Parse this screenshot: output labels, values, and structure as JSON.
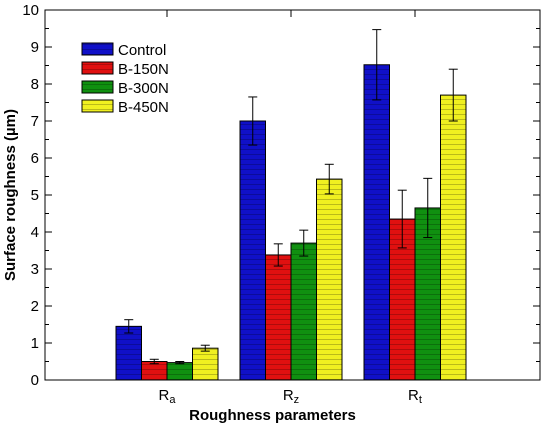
{
  "chart_data": {
    "type": "bar",
    "xlabel": "Roughness parameters",
    "ylabel": "Surface roughness (µm)",
    "ylim": [
      0,
      10
    ],
    "yticks": [
      0,
      1,
      2,
      3,
      4,
      5,
      6,
      7,
      8,
      9,
      10
    ],
    "categories": [
      {
        "main": "R",
        "sub": "a"
      },
      {
        "main": "R",
        "sub": "z"
      },
      {
        "main": "R",
        "sub": "t"
      }
    ],
    "series": [
      {
        "name": "Control",
        "color": "#1010c8",
        "values": [
          1.45,
          7.0,
          8.52
        ],
        "errors": [
          0.18,
          0.65,
          0.95
        ]
      },
      {
        "name": "B-150N",
        "color": "#e01010",
        "values": [
          0.5,
          3.38,
          4.35
        ],
        "errors": [
          0.06,
          0.3,
          0.78
        ]
      },
      {
        "name": "B-300N",
        "color": "#109010",
        "values": [
          0.47,
          3.7,
          4.65
        ],
        "errors": [
          0.03,
          0.35,
          0.8
        ]
      },
      {
        "name": "B-450N",
        "color": "#f0f020",
        "values": [
          0.86,
          5.43,
          7.7
        ],
        "errors": [
          0.08,
          0.4,
          0.7
        ]
      }
    ],
    "grid": false,
    "legend_position": "top-left"
  }
}
